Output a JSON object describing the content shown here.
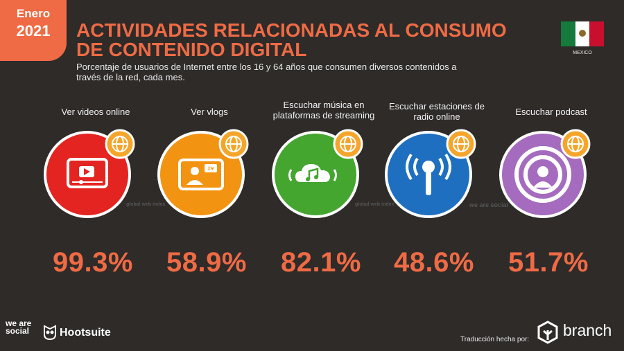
{
  "badge": {
    "month": "Enero",
    "year": "2021"
  },
  "title": "ACTIVIDADES RELACIONADAS AL CONSUMO DE CONTENIDO DIGITAL",
  "subtitle": "Porcentaje de usuarios de Internet entre los 16 y 64 años que consumen diversos contenidos a través de la red, cada mes.",
  "country": "MEXICO",
  "colors": {
    "accent": "#ef6b45",
    "background": "#2e2b29",
    "circles": [
      "#e32421",
      "#f29312",
      "#44a52f",
      "#1e6fc0",
      "#a46bbf"
    ]
  },
  "watermarks": {
    "gwi": "global web index",
    "weare": "we are social"
  },
  "chart_data": {
    "type": "bar",
    "title": "ACTIVIDADES RELACIONADAS AL CONSUMO DE CONTENIDO DIGITAL",
    "categories": [
      "Ver videos online",
      "Ver vlogs",
      "Escuchar música en plataformas de streaming",
      "Escuchar estaciones de radio online",
      "Escuchar podcast"
    ],
    "values": [
      99.3,
      58.9,
      82.1,
      48.6,
      51.7
    ],
    "value_labels": [
      "99.3%",
      "58.9%",
      "82.1%",
      "48.6%",
      "51.7%"
    ],
    "icons": [
      "video-play-icon",
      "vlog-person-icon",
      "music-cloud-icon",
      "radio-antenna-icon",
      "podcast-icon"
    ]
  },
  "footer": {
    "weare": "we are social",
    "hootsuite": "Hootsuite",
    "translation": "Traducción hecha por:",
    "branch": "branch"
  }
}
